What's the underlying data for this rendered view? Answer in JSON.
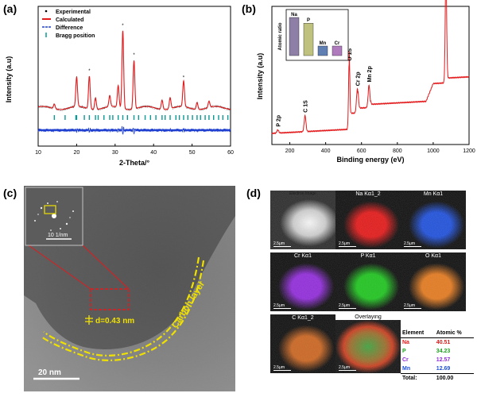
{
  "panel_a": {
    "label": "(a)",
    "legend": [
      "Experimental",
      "Calculated",
      "Difference",
      "Bragg position"
    ],
    "chart_data": {
      "type": "line",
      "xlabel": "2-Theta/°",
      "ylabel": "Intensity (a.u)",
      "xlim": [
        10,
        60
      ],
      "xticks": [
        "10",
        "20",
        "30",
        "40",
        "50",
        "60"
      ],
      "peaks_2theta": [
        14.2,
        20.0,
        23.3,
        24.9,
        28.6,
        30.8,
        32.0,
        34.9,
        42.2,
        44.3,
        47.8,
        51.3,
        54.4
      ],
      "peaks_rel_intensity": [
        0.06,
        0.38,
        0.42,
        0.15,
        0.14,
        0.28,
        1.0,
        0.62,
        0.12,
        0.14,
        0.33,
        0.09,
        0.08
      ],
      "annotations": [
        "*",
        "*",
        "*",
        "*"
      ]
    }
  },
  "panel_b": {
    "label": "(b)",
    "chart_data": {
      "type": "line",
      "xlabel": "Binding energy (eV)",
      "ylabel": "Intensity (a.u)",
      "xlim": [
        100,
        1200
      ],
      "xticks": [
        "200",
        "400",
        "600",
        "800",
        "1000",
        "1200"
      ],
      "peak_labels": [
        "P 2p",
        "C 1S",
        "O 1S",
        "Cr 2p",
        "Mn 2p",
        "Na 1s"
      ],
      "peak_positions": [
        133,
        285,
        531,
        577,
        642,
        1071
      ],
      "inset": {
        "type": "bar",
        "ylabel": "Atomic ratio",
        "categories": [
          "Na",
          "P",
          "Mn",
          "Cr"
        ],
        "values": [
          4.0,
          3.4,
          1.0,
          1.0
        ],
        "colors": [
          "#8e7fa6",
          "#bfc27f",
          "#5f7fb3",
          "#b07bbd"
        ]
      }
    }
  },
  "panel_c": {
    "label": "(c)",
    "saed_scale": "10 1/nm",
    "d_spacing": "d=0.43 nm",
    "carbon_layer": "Carbon layer",
    "scale_bar": "20 nm"
  },
  "panel_d": {
    "label": "(d)",
    "tiles": [
      {
        "caption": "Electron Image",
        "scale": "2.5μm",
        "color": "#b5b5b5"
      },
      {
        "caption": "Na Kα1_2",
        "scale": "2.5μm",
        "color": "#e01818"
      },
      {
        "caption": "Mn Kα1",
        "scale": "2.5μm",
        "color": "#1e4fd8"
      },
      {
        "caption": "Cr Kα1",
        "scale": "2.5μm",
        "color": "#8f2ad8"
      },
      {
        "caption": "P Kα1",
        "scale": "2.5μm",
        "color": "#1ec21e"
      },
      {
        "caption": "O Kα1",
        "scale": "2.5μm",
        "color": "#e0781e"
      },
      {
        "caption": "C Kα1_2",
        "scale": "2.5μm",
        "color": "#c86420"
      },
      {
        "caption": "Overlaying",
        "scale": "2.5μm",
        "color": "#6d8a40"
      }
    ],
    "table": {
      "headers": [
        "Element",
        "Atomic %"
      ],
      "rows": [
        {
          "element": "Na",
          "value": "40.51",
          "color": "#e01818"
        },
        {
          "element": "P",
          "value": "34.23",
          "color": "#1ea01e"
        },
        {
          "element": "Cr",
          "value": "12.57",
          "color": "#8f2ad8"
        },
        {
          "element": "Mn",
          "value": "12.69",
          "color": "#1e4fd8"
        },
        {
          "element": "Total:",
          "value": "100.00",
          "color": "#000000"
        }
      ]
    }
  }
}
